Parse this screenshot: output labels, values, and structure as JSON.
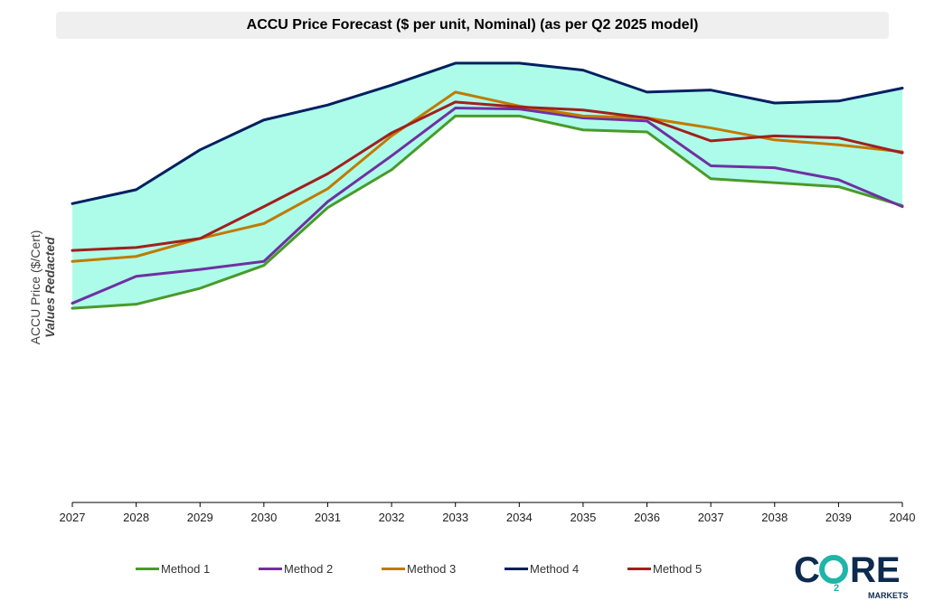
{
  "chart_data": {
    "type": "line",
    "title": "ACCU Price Forecast ($ per unit, Nominal) (as per Q2 2025 model)",
    "ylabel_line1": "ACCU Price ($/Cert)",
    "ylabel_line2": "Values Redacted",
    "xlabel": "",
    "x": [
      "2027",
      "2028",
      "2029",
      "2030",
      "2031",
      "2032",
      "2033",
      "2034",
      "2035",
      "2036",
      "2037",
      "2038",
      "2039",
      "2040"
    ],
    "ylim": [
      0,
      450
    ],
    "band": {
      "lower_series": "Method 1",
      "upper_series": "Method 4",
      "color": "#adfcea"
    },
    "series": [
      {
        "name": "Method 1",
        "color": "#4a9a2a",
        "values": [
          195,
          199,
          215,
          238,
          296,
          334,
          388,
          388,
          374,
          372,
          325,
          321,
          317,
          298
        ]
      },
      {
        "name": "Method 2",
        "color": "#7030a0",
        "values": [
          200,
          227,
          234,
          242,
          302,
          348,
          396,
          395,
          386,
          383,
          338,
          336,
          324,
          297
        ]
      },
      {
        "name": "Method 3",
        "color": "#c07a00",
        "values": [
          242,
          247,
          265,
          280,
          315,
          368,
          412,
          398,
          388,
          386,
          376,
          364,
          359,
          352
        ]
      },
      {
        "name": "Method 4",
        "color": "#002060",
        "values": [
          300,
          314,
          354,
          384,
          399,
          419,
          441,
          441,
          434,
          412,
          414,
          401,
          403,
          416
        ]
      },
      {
        "name": "Method 5",
        "color": "#a0201e",
        "values": [
          253,
          256,
          265,
          297,
          330,
          371,
          402,
          397,
          394,
          386,
          363,
          368,
          366,
          351
        ]
      }
    ],
    "grid": false,
    "legend_position": "bottom"
  },
  "logo": {
    "main": "CO",
    "sub": "2",
    "tail": "RE",
    "line2": "MARKETS",
    "colors": {
      "navy": "#0d2b4e",
      "teal": "#1fb5a8"
    }
  }
}
